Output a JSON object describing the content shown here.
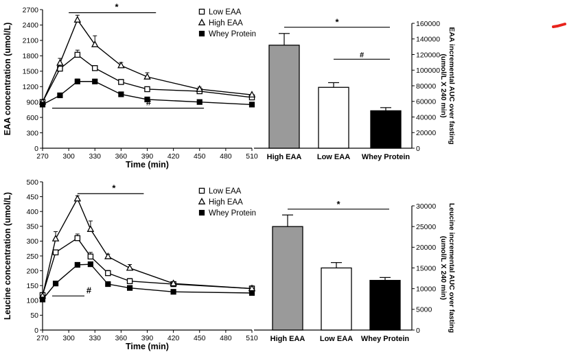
{
  "chart_data": [
    {
      "type": "line",
      "id": "eaa-line",
      "ylabel": "EAA concentration (umol/L)",
      "xlabel": "Time (min)",
      "xlim": [
        270,
        510
      ],
      "ylim": [
        0,
        2700
      ],
      "xticks": [
        270,
        300,
        330,
        360,
        390,
        420,
        450,
        480,
        510
      ],
      "yticks": [
        0,
        300,
        600,
        900,
        1200,
        1500,
        1800,
        2100,
        2400,
        2700
      ],
      "legend": [
        "Low EAA",
        "High EAA",
        "Whey Protein"
      ],
      "series": [
        {
          "name": "Low EAA",
          "marker": "square-open",
          "x": [
            270,
            290,
            310,
            330,
            360,
            390,
            450,
            510
          ],
          "y": [
            900,
            1550,
            1820,
            1560,
            1290,
            1150,
            1110,
            990
          ],
          "err": [
            0,
            80,
            90,
            50,
            50,
            0,
            80,
            30
          ]
        },
        {
          "name": "High EAA",
          "marker": "triangle-open",
          "x": [
            270,
            290,
            310,
            330,
            360,
            390,
            450,
            510
          ],
          "y": [
            900,
            1660,
            2500,
            2020,
            1610,
            1390,
            1150,
            1040
          ],
          "err": [
            0,
            90,
            90,
            170,
            60,
            80,
            0,
            0
          ]
        },
        {
          "name": "Whey Protein",
          "marker": "square-filled",
          "x": [
            270,
            290,
            310,
            330,
            360,
            390,
            450,
            510
          ],
          "y": [
            850,
            1030,
            1300,
            1300,
            1050,
            950,
            900,
            850
          ],
          "err": [
            0,
            40,
            50,
            0,
            40,
            0,
            0,
            0
          ]
        }
      ],
      "annotations": [
        {
          "label": "*",
          "x_from": 300,
          "x_to": 400,
          "y": 2640
        },
        {
          "label": "#",
          "x_from": 281,
          "x_to": 455,
          "y": 780
        }
      ]
    },
    {
      "type": "bar",
      "id": "eaa-auc",
      "ylabel": "EAA incremental AUC over fasting (umol/L X 240 min)",
      "categories": [
        "High EAA",
        "Low EAA",
        "Whey Protein"
      ],
      "values": [
        132000,
        78000,
        48000
      ],
      "errors": [
        15000,
        6000,
        4000
      ],
      "colors": [
        "#9a9a9a",
        "#ffffff",
        "#000000"
      ],
      "ylim": [
        0,
        160000
      ],
      "yticks": [
        0,
        20000,
        40000,
        60000,
        80000,
        100000,
        120000,
        140000,
        160000
      ],
      "annotations": [
        {
          "label": "*",
          "from": 0,
          "to": 2,
          "y": 155000
        },
        {
          "label": "#",
          "from": 1,
          "to": 2,
          "y": 114000
        }
      ]
    },
    {
      "type": "line",
      "id": "leu-line",
      "ylabel": "Leucine concentration (umol/L)",
      "xlabel": "Time (min)",
      "xlim": [
        270,
        510
      ],
      "ylim": [
        0,
        500
      ],
      "xticks": [
        270,
        300,
        330,
        360,
        390,
        420,
        450,
        480,
        510
      ],
      "yticks": [
        0,
        50,
        100,
        150,
        200,
        250,
        300,
        350,
        400,
        450,
        500
      ],
      "legend": [
        "Low EAA",
        "High EAA",
        "Whey Protein"
      ],
      "series": [
        {
          "name": "Low EAA",
          "marker": "square-open",
          "x": [
            270,
            285,
            310,
            325,
            345,
            370,
            420,
            510
          ],
          "y": [
            118,
            262,
            310,
            248,
            192,
            165,
            155,
            140
          ],
          "err": [
            0,
            0,
            14,
            14,
            9,
            9,
            8,
            9
          ]
        },
        {
          "name": "High EAA",
          "marker": "triangle-open",
          "x": [
            270,
            285,
            310,
            325,
            345,
            370,
            420,
            510
          ],
          "y": [
            115,
            308,
            443,
            340,
            248,
            209,
            157,
            140
          ],
          "err": [
            0,
            24,
            10,
            28,
            8,
            12,
            0,
            0
          ]
        },
        {
          "name": "Whey Protein",
          "marker": "square-filled",
          "x": [
            270,
            285,
            310,
            325,
            345,
            370,
            420,
            510
          ],
          "y": [
            103,
            157,
            220,
            222,
            155,
            142,
            129,
            125
          ],
          "err": [
            0,
            0,
            0,
            0,
            0,
            0,
            0,
            0
          ]
        }
      ],
      "annotations": [
        {
          "label": "*",
          "x_from": 310,
          "x_to": 386,
          "y": 460
        },
        {
          "label": "#",
          "x_from": 281,
          "x_to": 318,
          "y": 115
        }
      ]
    },
    {
      "type": "bar",
      "id": "leu-auc",
      "ylabel": "Leucine incremental AUC over fasting (umol/L X 240 min)",
      "categories": [
        "High EAA",
        "Low EAA",
        "Whey Protein"
      ],
      "values": [
        25000,
        15000,
        12000
      ],
      "errors": [
        2800,
        1300,
        700
      ],
      "colors": [
        "#9a9a9a",
        "#ffffff",
        "#000000"
      ],
      "ylim": [
        0,
        30000
      ],
      "yticks": [
        0,
        5000,
        10000,
        15000,
        20000,
        25000,
        30000
      ],
      "annotations": [
        {
          "label": "*",
          "from": 0,
          "to": 2,
          "y": 29200
        }
      ]
    }
  ],
  "marker_mark": {
    "color": "#e8231c"
  }
}
